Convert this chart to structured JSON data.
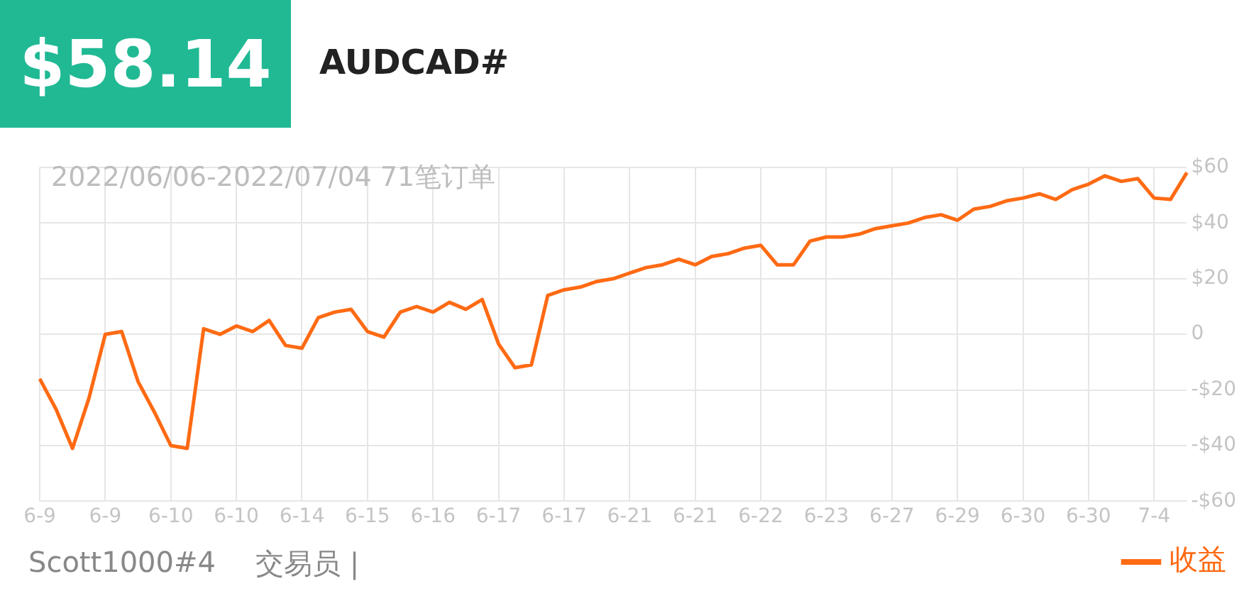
{
  "chart_data": {
    "type": "line",
    "title": "AUDCAD#",
    "subtitle": "2022/06/06-2022/07/04 71笔订单",
    "annotations": [
      "$58.14",
      "Scott1000#4",
      "交易员 |"
    ],
    "categories": [
      "6-9",
      null,
      null,
      null,
      "6-9",
      null,
      null,
      null,
      "6-10",
      null,
      null,
      null,
      "6-10",
      null,
      null,
      null,
      "6-14",
      null,
      null,
      null,
      "6-15",
      null,
      null,
      null,
      "6-16",
      null,
      null,
      null,
      "6-17",
      null,
      null,
      null,
      "6-17",
      null,
      null,
      null,
      "6-21",
      null,
      null,
      null,
      "6-21",
      null,
      null,
      null,
      "6-22",
      null,
      null,
      null,
      "6-23",
      null,
      null,
      null,
      "6-27",
      null,
      null,
      null,
      "6-29",
      null,
      null,
      null,
      "6-30",
      null,
      null,
      null,
      "6-30",
      null,
      null,
      null,
      "7-4",
      null,
      null
    ],
    "series": [
      {
        "name": "收益",
        "color": "#ff6a13",
        "values": [
          -16,
          -27,
          -41,
          -23,
          0,
          1,
          -17,
          -28,
          -40,
          -41,
          2,
          0,
          3,
          1,
          5,
          -4,
          -5,
          6,
          8,
          9,
          1,
          -1,
          8,
          10,
          8,
          11.5,
          9,
          12.5,
          -3.5,
          -12,
          -11,
          14,
          16,
          17,
          19,
          20,
          22,
          24,
          25,
          27,
          25,
          28,
          29,
          31,
          32,
          25,
          25,
          33.5,
          35,
          35,
          36,
          38,
          39,
          40,
          42,
          43,
          41,
          45,
          46,
          48,
          49,
          50.5,
          48.5,
          52,
          54,
          57,
          55,
          56,
          49,
          48.5,
          58.14
        ]
      }
    ],
    "ylim": [
      -60,
      60
    ],
    "yticks": [
      {
        "value": -60,
        "label": "-$60"
      },
      {
        "value": -40,
        "label": "-$40"
      },
      {
        "value": -20,
        "label": "-$20"
      },
      0,
      {
        "value": 20,
        "label": "$20"
      },
      {
        "value": 40,
        "label": "$40"
      },
      {
        "value": 60,
        "label": "$60"
      }
    ],
    "grid": true,
    "legend": "bottom right",
    "marker": "none",
    "line_style": "solid"
  }
}
